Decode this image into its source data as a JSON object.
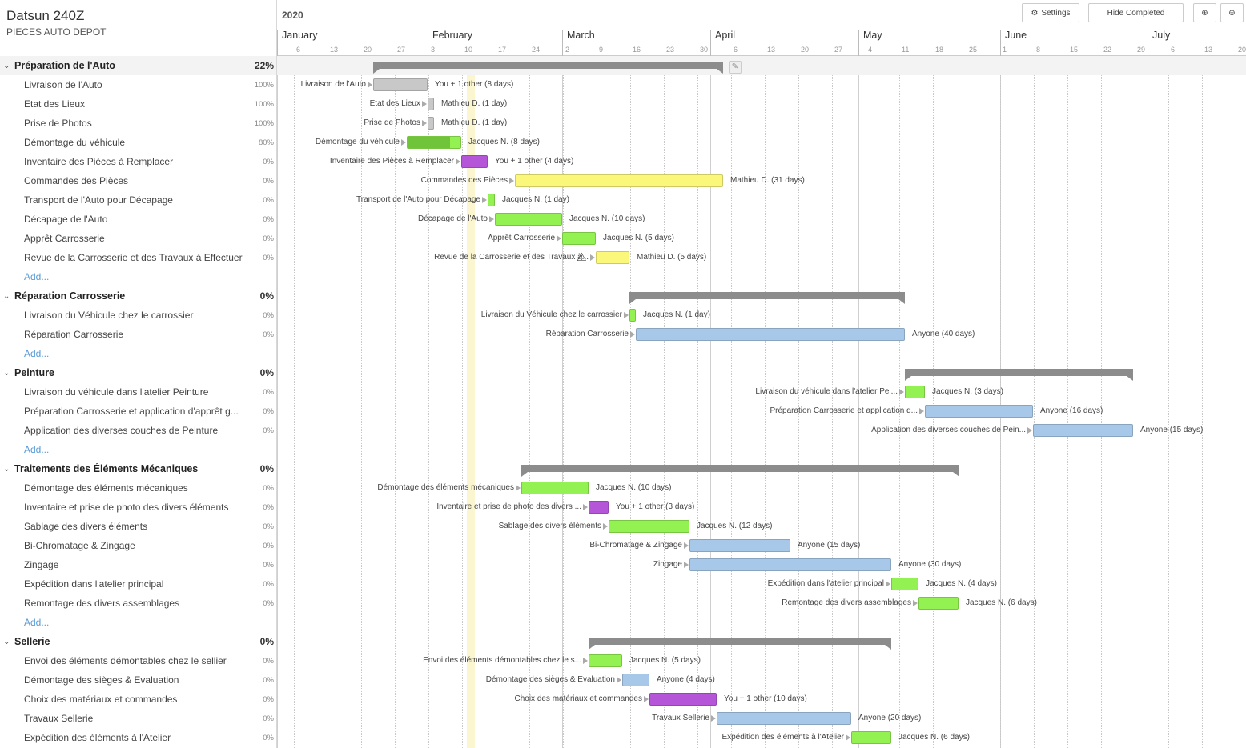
{
  "project": {
    "title": "Datsun 240Z",
    "subtitle": "PIECES AUTO DEPOT"
  },
  "toolbar": {
    "year": "2020",
    "settings_label": "Settings",
    "hide_completed_label": "Hide Completed"
  },
  "timeline": {
    "months": [
      "January",
      "February",
      "March",
      "April",
      "May",
      "June",
      "July"
    ],
    "day_ticks": [
      "6",
      "13",
      "20",
      "27",
      "3",
      "10",
      "17",
      "24",
      "2",
      "9",
      "16",
      "23",
      "30",
      "6",
      "13",
      "20",
      "27",
      "4",
      "11",
      "18",
      "25",
      "1",
      "8",
      "15",
      "22",
      "29",
      "6",
      "13",
      "20"
    ]
  },
  "groups": [
    {
      "name": "Préparation de l'Auto",
      "percent": "22%",
      "add_label": "Add...",
      "tasks": [
        {
          "name": "Livraison de l'Auto",
          "percent": "100%",
          "bar_label": "Livraison de l'Auto",
          "assignee": "You + 1 other (8 days)",
          "color": "gray",
          "progress": 1.0
        },
        {
          "name": "Etat des Lieux",
          "percent": "100%",
          "bar_label": "Etat des Lieux",
          "assignee": "Mathieu D. (1 day)",
          "color": "gray",
          "progress": 1.0
        },
        {
          "name": "Prise de Photos",
          "percent": "100%",
          "bar_label": "Prise de Photos",
          "assignee": "Mathieu D. (1 day)",
          "color": "gray",
          "progress": 1.0
        },
        {
          "name": "Démontage du véhicule",
          "percent": "80%",
          "bar_label": "Démontage du véhicule",
          "assignee": "Jacques N. (8 days)",
          "color": "green",
          "progress": 0.8
        },
        {
          "name": "Inventaire des Pièces à Remplacer",
          "percent": "0%",
          "bar_label": "Inventaire des Pièces à Remplacer",
          "assignee": "You + 1 other (4 days)",
          "color": "purple",
          "progress": 0
        },
        {
          "name": "Commandes des Pièces",
          "percent": "0%",
          "bar_label": "Commandes des Pièces",
          "assignee": "Mathieu D. (31 days)",
          "color": "yellow",
          "progress": 0
        },
        {
          "name": "Transport de l'Auto pour Décapage",
          "percent": "0%",
          "bar_label": "Transport de l'Auto pour Décapage",
          "assignee": "Jacques N. (1 day)",
          "color": "green",
          "progress": 0
        },
        {
          "name": "Décapage de l'Auto",
          "percent": "0%",
          "bar_label": "Décapage de l'Auto",
          "assignee": "Jacques N. (10 days)",
          "color": "green",
          "progress": 0
        },
        {
          "name": "Apprêt Carrosserie",
          "percent": "0%",
          "bar_label": "Apprêt Carrosserie",
          "assignee": "Jacques N. (5 days)",
          "color": "green",
          "progress": 0
        },
        {
          "name": "Revue de la Carrosserie et des Travaux à Effectuer",
          "percent": "0%",
          "bar_label": "Revue de la Carrosserie et des Travaux à...",
          "assignee": "Mathieu D. (5 days)",
          "color": "yellow",
          "progress": 0,
          "warning": true
        }
      ]
    },
    {
      "name": "Réparation Carrosserie",
      "percent": "0%",
      "add_label": "Add...",
      "tasks": [
        {
          "name": "Livraison du Véhicule chez le carrossier",
          "percent": "0%",
          "bar_label": "Livraison du Véhicule chez le carrossier",
          "assignee": "Jacques N. (1 day)",
          "color": "green",
          "progress": 0
        },
        {
          "name": "Réparation Carrosserie",
          "percent": "0%",
          "bar_label": "Réparation Carrosserie",
          "assignee": "Anyone (40 days)",
          "color": "blue",
          "progress": 0
        }
      ]
    },
    {
      "name": "Peinture",
      "percent": "0%",
      "add_label": "Add...",
      "tasks": [
        {
          "name": "Livraison du véhicule dans l'atelier Peinture",
          "percent": "0%",
          "bar_label": "Livraison du véhicule dans l'atelier Pei...",
          "assignee": "Jacques N. (3 days)",
          "color": "green",
          "progress": 0
        },
        {
          "name": "Préparation Carrosserie et application d'apprêt g...",
          "percent": "0%",
          "bar_label": "Préparation Carrosserie et application d...",
          "assignee": "Anyone (16 days)",
          "color": "blue",
          "progress": 0
        },
        {
          "name": "Application des diverses couches de Peinture",
          "percent": "0%",
          "bar_label": "Application des diverses couches de Pein...",
          "assignee": "Anyone (15 days)",
          "color": "blue",
          "progress": 0
        }
      ]
    },
    {
      "name": "Traitements des Éléments Mécaniques",
      "percent": "0%",
      "add_label": "Add...",
      "tasks": [
        {
          "name": "Démontage des éléments mécaniques",
          "percent": "0%",
          "bar_label": "Démontage des éléments mécaniques",
          "assignee": "Jacques N. (10 days)",
          "color": "green",
          "progress": 0
        },
        {
          "name": "Inventaire et prise de photo des divers éléments",
          "percent": "0%",
          "bar_label": "Inventaire et prise de photo des divers ...",
          "assignee": "You + 1 other (3 days)",
          "color": "purple",
          "progress": 0
        },
        {
          "name": "Sablage des divers éléments",
          "percent": "0%",
          "bar_label": "Sablage des divers éléments",
          "assignee": "Jacques N. (12 days)",
          "color": "green",
          "progress": 0
        },
        {
          "name": "Bi-Chromatage & Zingage",
          "percent": "0%",
          "bar_label": "Bi-Chromatage & Zingage",
          "assignee": "Anyone (15 days)",
          "color": "blue",
          "progress": 0
        },
        {
          "name": "Zingage",
          "percent": "0%",
          "bar_label": "Zingage",
          "assignee": "Anyone (30 days)",
          "color": "blue",
          "progress": 0
        },
        {
          "name": "Expédition dans l'atelier principal",
          "percent": "0%",
          "bar_label": "Expédition dans l'atelier principal",
          "assignee": "Jacques N. (4 days)",
          "color": "green",
          "progress": 0
        },
        {
          "name": "Remontage des divers assemblages",
          "percent": "0%",
          "bar_label": "Remontage des divers assemblages",
          "assignee": "Jacques N. (6 days)",
          "color": "green",
          "progress": 0
        }
      ]
    },
    {
      "name": "Sellerie",
      "percent": "0%",
      "add_label": "",
      "tasks": [
        {
          "name": "Envoi des éléments démontables chez le sellier",
          "percent": "0%",
          "bar_label": "Envoi des éléments démontables chez le s...",
          "assignee": "Jacques N. (5 days)",
          "color": "green",
          "progress": 0
        },
        {
          "name": "Démontage des sièges & Evaluation",
          "percent": "0%",
          "bar_label": "Démontage des sièges & Evaluation",
          "assignee": "Anyone (4 days)",
          "color": "blue",
          "progress": 0
        },
        {
          "name": "Choix des matériaux et commandes",
          "percent": "0%",
          "bar_label": "Choix des matériaux et commandes",
          "assignee": "You + 1 other (10 days)",
          "color": "purple",
          "progress": 0
        },
        {
          "name": "Travaux Sellerie",
          "percent": "0%",
          "bar_label": "Travaux Sellerie",
          "assignee": "Anyone (20 days)",
          "color": "blue",
          "progress": 0
        },
        {
          "name": "Expédition des éléments à l'Atelier",
          "percent": "0%",
          "bar_label": "Expédition des éléments à l'Atelier",
          "assignee": "Jacques N. (6 days)",
          "color": "green",
          "progress": 0
        }
      ]
    }
  ],
  "colors": {
    "green": "#93f152",
    "gray": "#c8c8c8",
    "yellow": "#fbf77a",
    "purple": "#b556d9",
    "blue": "#a7c8e8",
    "summary": "#8c8c8c",
    "today": "#fbf6cf"
  }
}
